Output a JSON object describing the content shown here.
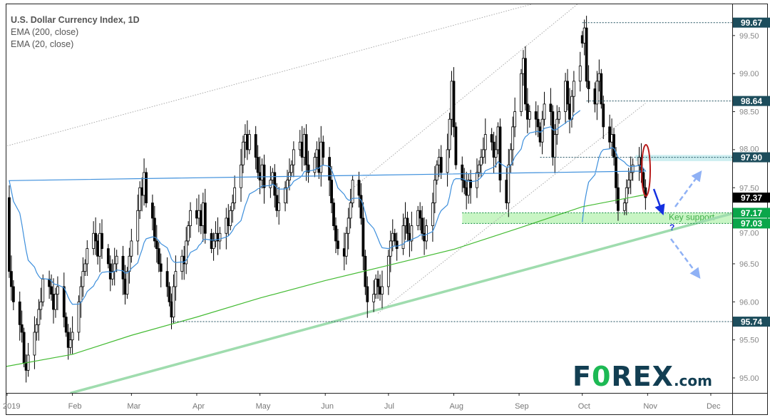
{
  "chart_data": {
    "type": "candlestick",
    "title": "U.S. Dollar Currency Index, 1D",
    "indicators": [
      {
        "name": "EMA (200, close)",
        "color": "#44bb33"
      },
      {
        "name": "EMA (20, close)",
        "color": "#3d8fdc"
      }
    ],
    "year": 2019,
    "x_tick_labels": [
      "2019",
      "Feb",
      "Mar",
      "Apr",
      "May",
      "Jun",
      "Jul",
      "Aug",
      "Sep",
      "Oct",
      "Nov",
      "Dec"
    ],
    "y_tick_labels": [
      "95.00",
      "95.50",
      "96.00",
      "96.50",
      "97.00",
      "97.50",
      "98.00",
      "98.50",
      "99.00",
      "99.50"
    ],
    "ylim": [
      94.8,
      99.95
    ],
    "daily_closes_by_month": {
      "01": [
        96.4,
        96.2,
        96.0,
        95.7,
        95.6,
        95.2,
        95.1,
        95.3,
        95.6,
        95.7,
        95.9,
        96.0,
        96.3,
        96.2,
        96.1,
        95.9,
        96.1,
        96.2,
        95.8,
        95.6,
        95.4,
        95.5
      ],
      "02": [
        95.6,
        96.0,
        96.2,
        96.4,
        96.5,
        96.7,
        96.9,
        96.8,
        96.6,
        96.9,
        96.7,
        96.5,
        96.3,
        96.4,
        96.5,
        96.6,
        96.3,
        96.1,
        96.4,
        96.6
      ],
      "03": [
        96.8,
        97.2,
        97.5,
        97.4,
        97.7,
        97.3,
        97.1,
        96.8,
        96.7,
        96.5,
        96.4,
        96.2,
        96.0,
        95.8,
        96.2,
        96.4,
        96.6,
        96.5,
        96.8,
        97.0,
        97.2
      ],
      "04": [
        97.1,
        97.2,
        97.0,
        97.3,
        96.9,
        96.7,
        96.8,
        96.9,
        96.8,
        96.9,
        97.1,
        97.0,
        97.2,
        97.3,
        97.5,
        97.8,
        98.1,
        98.2,
        98.0,
        98.2,
        97.9,
        97.7
      ],
      "05": [
        97.6,
        97.8,
        97.5,
        97.6,
        97.7,
        97.4,
        97.2,
        97.3,
        97.5,
        97.6,
        97.7,
        97.8,
        98.0,
        98.1,
        97.9,
        98.2,
        97.8,
        97.7,
        97.9,
        98.0,
        97.7,
        98.1,
        97.9
      ],
      "06": [
        97.6,
        97.3,
        97.0,
        96.8,
        96.7,
        96.6,
        96.9,
        97.1,
        97.3,
        97.6,
        97.4,
        97.1,
        96.6,
        96.2,
        96.0,
        96.1,
        96.3,
        96.2,
        96.1,
        96.2
      ],
      "07": [
        96.6,
        96.8,
        96.9,
        96.8,
        96.7,
        97.0,
        97.1,
        96.9,
        96.8,
        97.0,
        97.2,
        97.1,
        96.9,
        96.8,
        97.0,
        97.3,
        97.6,
        97.8,
        97.9,
        97.7,
        98.0,
        98.4,
        98.9
      ],
      "08": [
        98.3,
        97.8,
        97.6,
        97.5,
        97.4,
        97.6,
        97.5,
        97.7,
        97.8,
        97.9,
        98.0,
        98.2,
        98.1,
        97.9,
        98.0,
        98.3,
        97.6,
        97.3,
        97.8,
        98.0,
        98.3,
        98.5
      ],
      "09": [
        99.0,
        99.2,
        98.6,
        98.4,
        98.5,
        98.4,
        98.3,
        98.1,
        98.4,
        98.6,
        98.5,
        97.9,
        98.2,
        98.4,
        98.5,
        98.9,
        98.6,
        98.4,
        98.7,
        98.9,
        99.1
      ],
      "10": [
        99.4,
        99.6,
        98.9,
        98.8,
        98.6,
        98.9,
        99.0,
        98.6,
        98.3,
        98.1,
        98.2,
        97.9,
        97.5,
        97.2,
        97.3,
        97.5,
        97.6,
        97.7,
        97.8,
        97.9,
        97.7,
        97.5,
        97.37
      ]
    },
    "ema200_monthly": {
      "01-01": 95.15,
      "02-01": 95.31,
      "03-01": 95.56,
      "04-01": 95.8,
      "05-01": 96.05,
      "06-01": 96.28,
      "07-01": 96.48,
      "08-01": 96.69,
      "09-01": 96.97,
      "10-01": 97.25,
      "10-31": 97.41
    },
    "levels": [
      {
        "price": 99.67,
        "label": "99.67",
        "from": "10-01",
        "color": "#1d4d5c"
      },
      {
        "price": 98.64,
        "label": "98.64",
        "from": "10-03",
        "color": "#1d4d5c"
      },
      {
        "price": 97.9,
        "label": "97.90",
        "from": "09-11",
        "color": "#1d4d5c"
      },
      {
        "price": 97.37,
        "label": "97.37",
        "color": "#000000"
      },
      {
        "price": 97.17,
        "label": "97.17",
        "from": "08-05",
        "color": "#0aa64a"
      },
      {
        "price": 97.03,
        "label": "97.03",
        "from": "08-05",
        "color": "#0aa64a"
      },
      {
        "price": 95.74,
        "label": "95.74",
        "from": "03-20",
        "color": "#1d4d5c"
      }
    ],
    "support_zone": {
      "low": 97.03,
      "high": 97.17,
      "from": "08-05",
      "label": "Key support",
      "color": "#c8f5c4"
    },
    "trendlines": [
      {
        "style": "dotted",
        "from": [
          "01-01",
          98.05
        ],
        "to": [
          "09-08",
          99.92
        ]
      },
      {
        "style": "dotted",
        "from": [
          "06-13",
          97.47
        ],
        "to": [
          "09-29",
          99.92
        ]
      },
      {
        "style": "dotted",
        "from": [
          "06-26",
          95.85
        ],
        "to": [
          "10-31",
          98.61
        ]
      },
      {
        "style": "solid-thick",
        "from": [
          "01-31",
          94.8
        ],
        "to": [
          "12-11",
          97.16
        ],
        "color": "#9fdcae"
      }
    ],
    "annotation_question": "?",
    "grid": false
  },
  "brand": {
    "logo_text": "FOREX.com"
  }
}
